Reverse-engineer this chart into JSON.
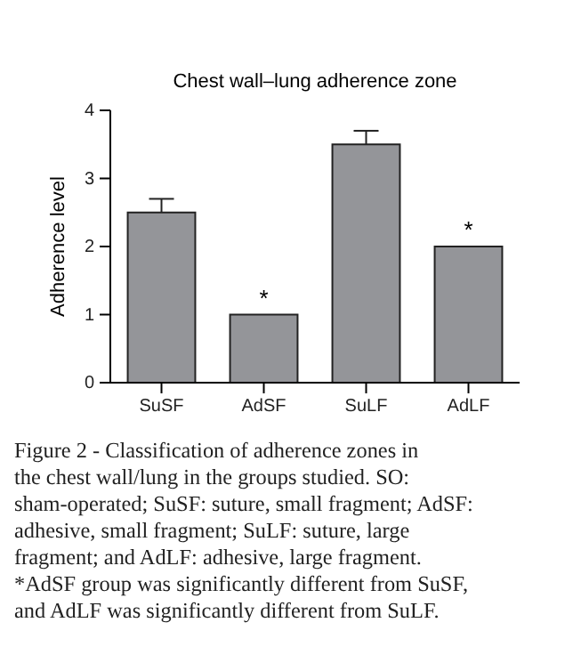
{
  "chart_data": {
    "type": "bar",
    "title": "Chest wall–lung adherence zone",
    "ylabel": "Adherence level",
    "categories": [
      "SuSF",
      "AdSF",
      "SuLF",
      "AdLF"
    ],
    "values": [
      2.5,
      1,
      3.5,
      2
    ],
    "errors": [
      [
        2.5,
        2.7
      ],
      null,
      [
        3.5,
        3.7
      ],
      null
    ],
    "color": "#949599",
    "ylim": [
      0,
      4
    ],
    "yticks": [
      0,
      1,
      2,
      3,
      4
    ],
    "grid": false,
    "annotations": [
      {
        "text": "*",
        "x": "AdSF",
        "y": 1
      },
      {
        "text": "*",
        "x": "AdLF",
        "y": 2
      },
      "Figure 2 - Classification of adherence zones in the chest wall/lung in the groups studied. SO: sham-operated; SuSF: suture, small fragment; AdSF: adhesive, small fragment; SuLF: suture, large fragment; and AdLF: adhesive, large fragment. *AdSF group was significantly different from SuSF, and AdLF was significantly different from SuLF."
    ]
  }
}
